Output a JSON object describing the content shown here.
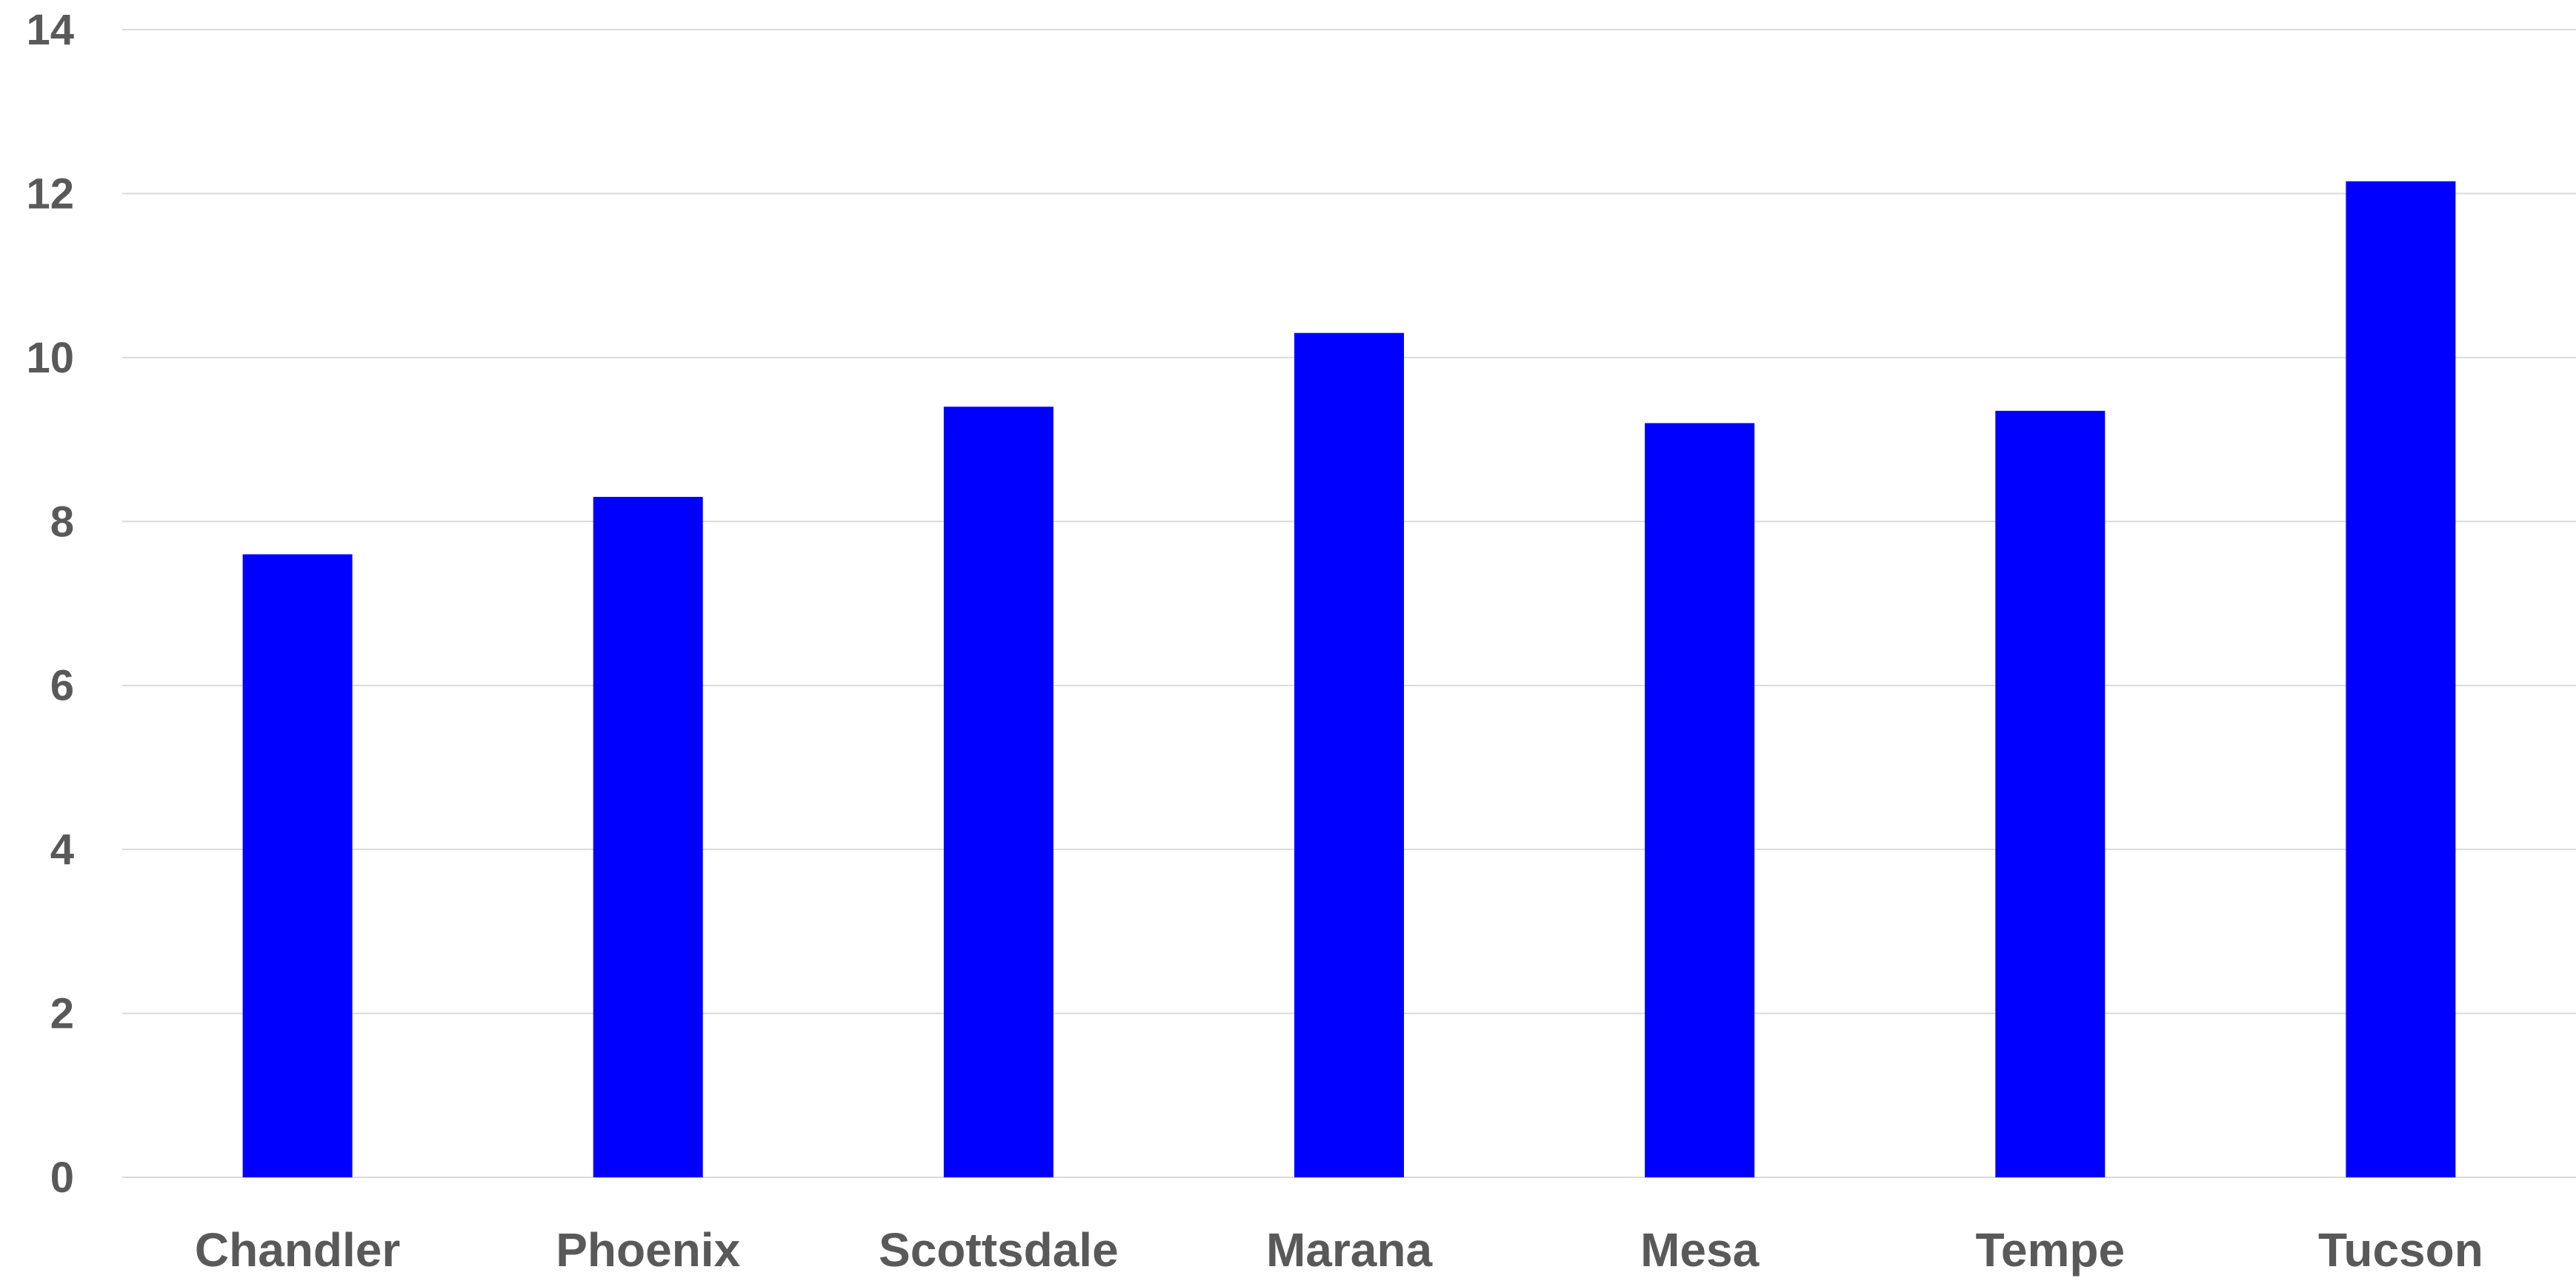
{
  "chart_data": {
    "type": "bar",
    "title": "",
    "xlabel": "",
    "ylabel": "",
    "categories": [
      "Chandler",
      "Phoenix",
      "Scottsdale",
      "Marana",
      "Mesa",
      "Tempe",
      "Tucson"
    ],
    "values": [
      7.6,
      8.3,
      9.4,
      10.3,
      9.2,
      9.35,
      12.15
    ],
    "ylim": [
      0,
      14
    ],
    "yticks": [
      0,
      2,
      4,
      6,
      8,
      10,
      12,
      14
    ],
    "ytick_labels": [
      "0",
      "2",
      "4",
      "6",
      "8",
      "10",
      "12",
      "14"
    ],
    "grid": true,
    "legend": "none",
    "bar_color": "#0000FF",
    "gridline_color": "#D9D9D9",
    "label_color": "#595959"
  }
}
